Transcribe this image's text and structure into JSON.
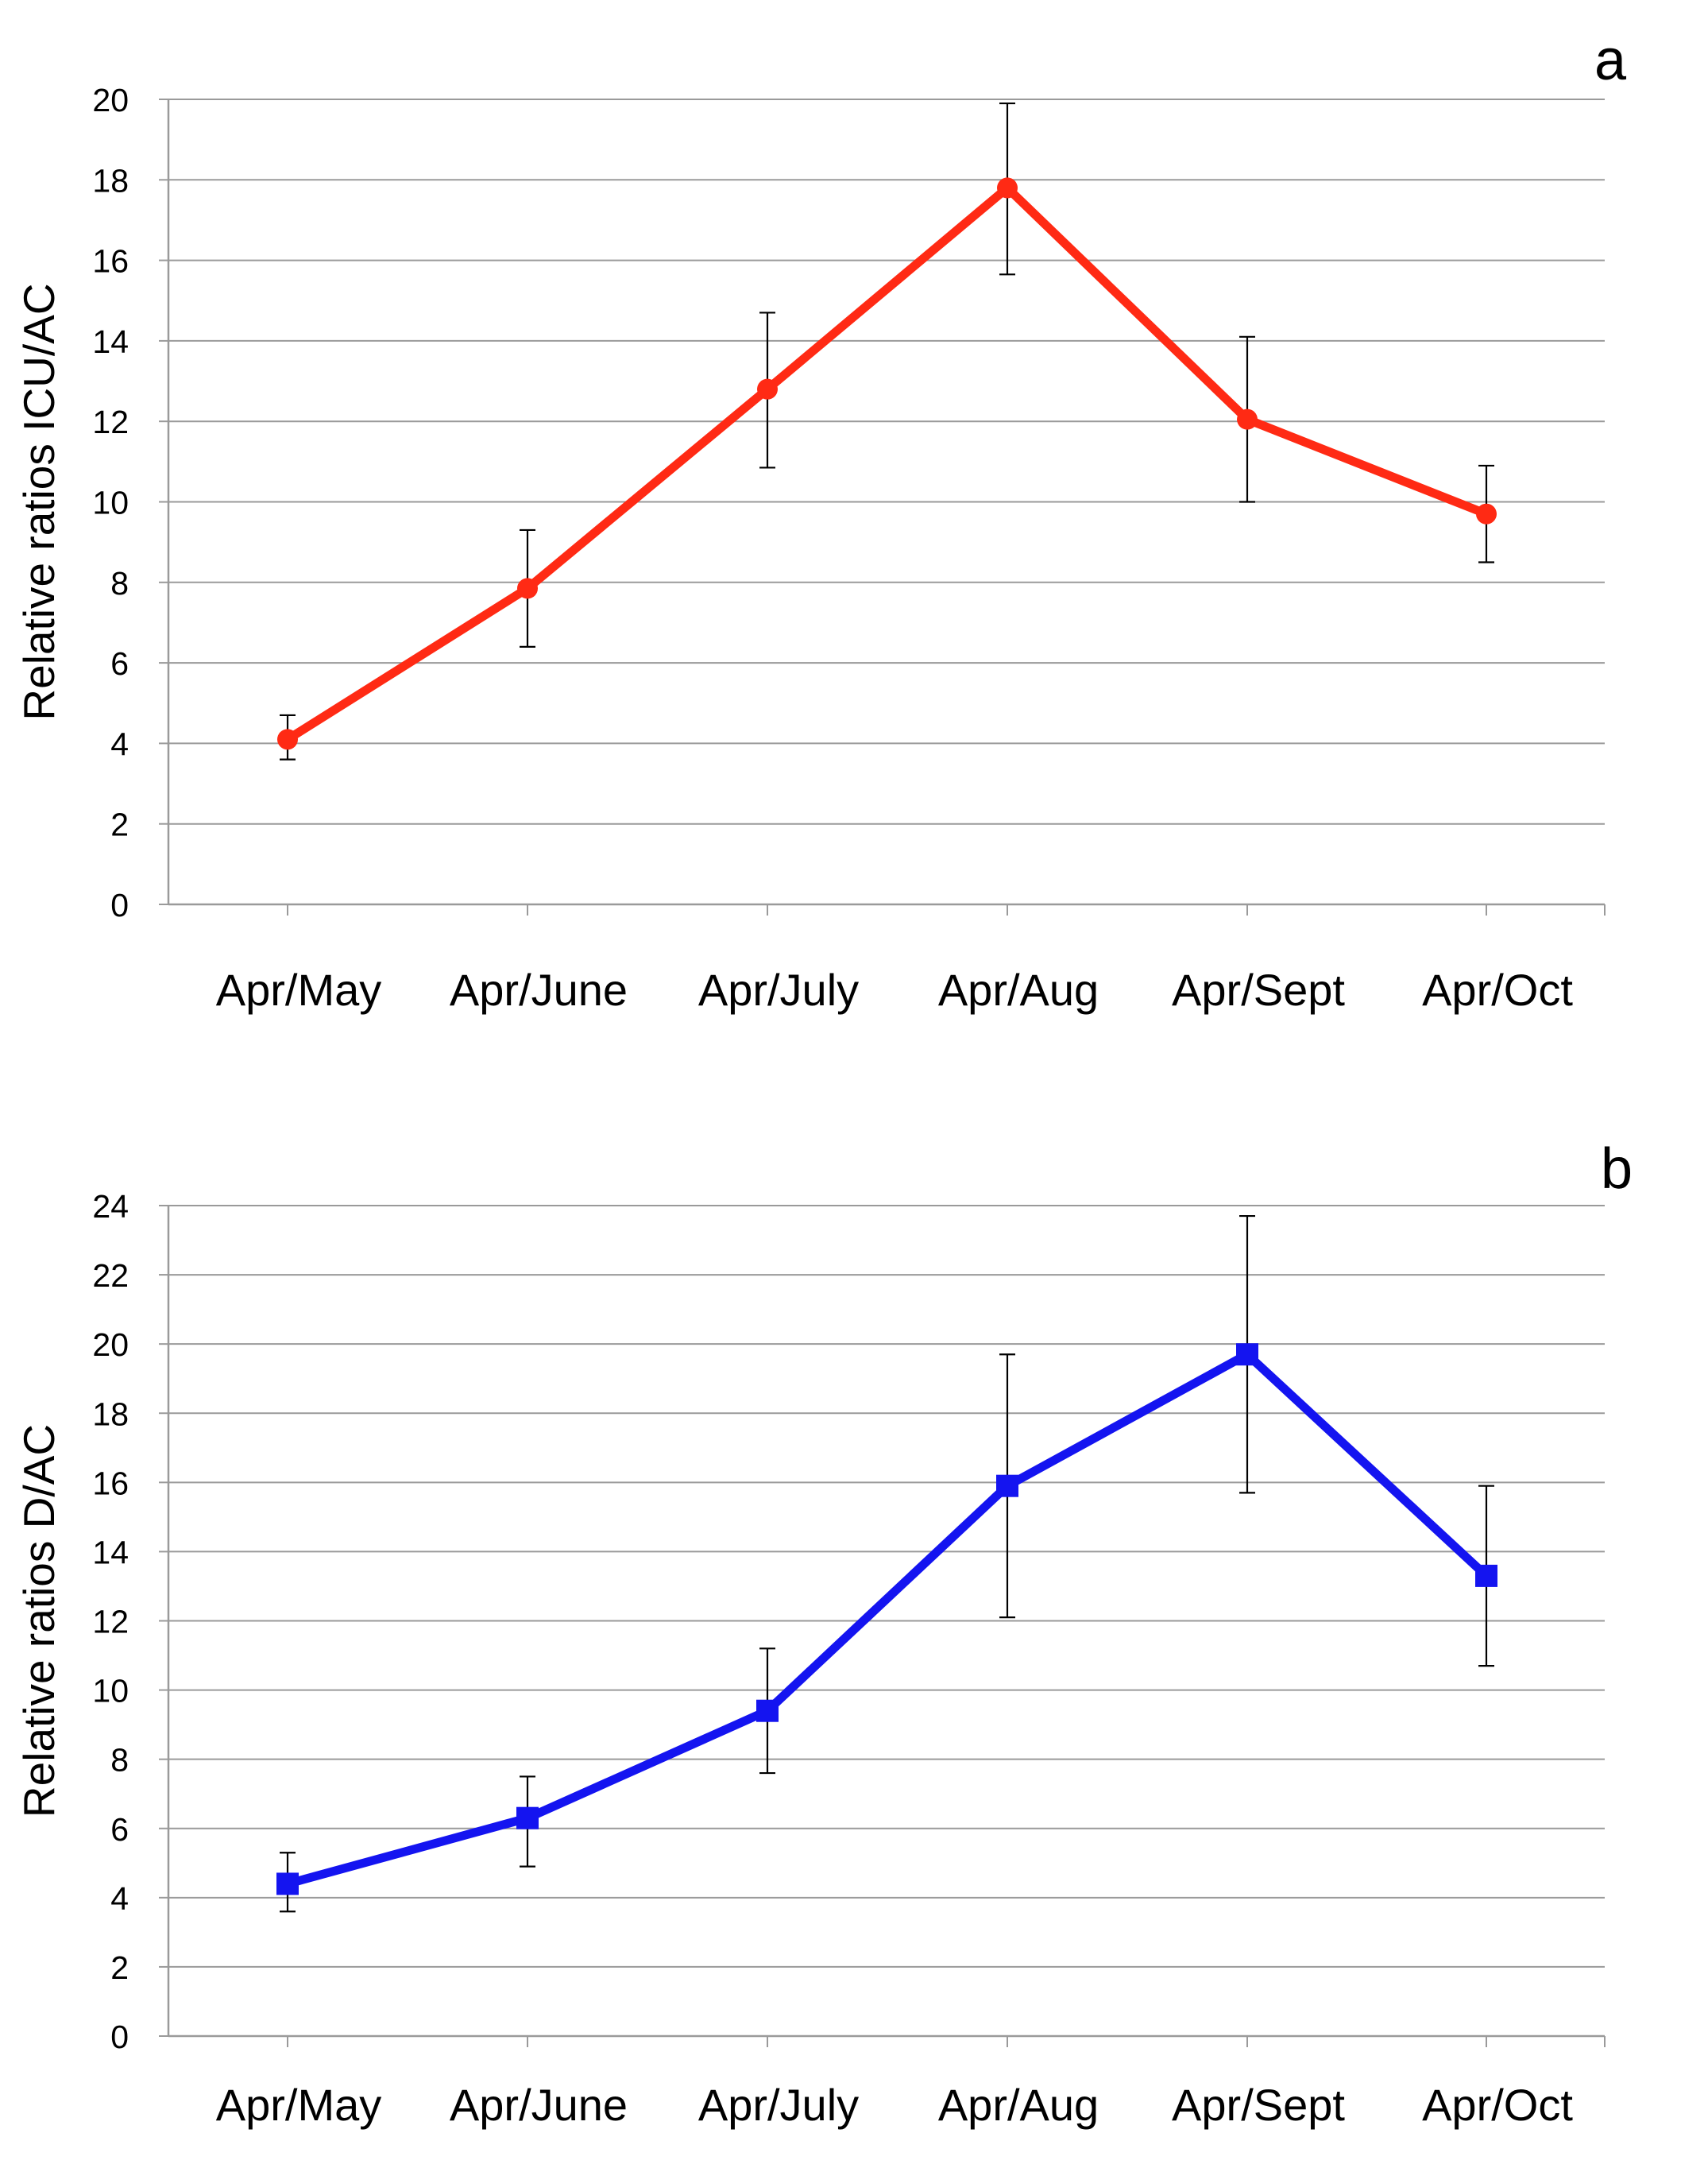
{
  "chart_data": [
    {
      "type": "line",
      "panel_label": "a",
      "title": "",
      "xlabel": "",
      "ylabel": "Relative ratios ICU/AC",
      "categories": [
        "Apr/May",
        "Apr/June",
        "Apr/July",
        "Apr/Aug",
        "Apr/Sept",
        "Apr/Oct"
      ],
      "series": [
        {
          "values": [
            4.1,
            7.85,
            12.8,
            17.8,
            12.05,
            9.7
          ],
          "error_upper": [
            4.7,
            9.3,
            14.7,
            19.9,
            14.1,
            10.9
          ],
          "error_lower": [
            3.6,
            6.4,
            10.85,
            15.65,
            10.0,
            8.5
          ],
          "color": "#ff2a14",
          "marker": "circle"
        }
      ],
      "ylim": [
        0,
        20
      ],
      "yticks": [
        0,
        2,
        4,
        6,
        8,
        10,
        12,
        14,
        16,
        18,
        20
      ],
      "grid": true,
      "legend": "none"
    },
    {
      "type": "line",
      "panel_label": "b",
      "title": "",
      "xlabel": "",
      "ylabel": "Relative ratios D/AC",
      "categories": [
        "Apr/May",
        "Apr/June",
        "Apr/July",
        "Apr/Aug",
        "Apr/Sept",
        "Apr/Oct"
      ],
      "series": [
        {
          "values": [
            4.4,
            6.3,
            9.4,
            15.9,
            19.7,
            13.3
          ],
          "error_upper": [
            5.3,
            7.5,
            11.2,
            19.7,
            23.7,
            15.9
          ],
          "error_lower": [
            3.6,
            4.9,
            7.6,
            12.1,
            15.7,
            10.7
          ],
          "color": "#1414f0",
          "marker": "square"
        }
      ],
      "ylim": [
        0,
        24
      ],
      "yticks": [
        0,
        2,
        4,
        6,
        8,
        10,
        12,
        14,
        16,
        18,
        20,
        22,
        24
      ],
      "grid": true,
      "legend": "none"
    }
  ]
}
